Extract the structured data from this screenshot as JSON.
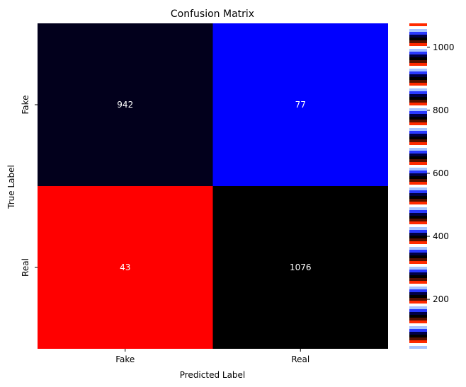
{
  "chart_data": {
    "type": "heatmap",
    "title": "Confusion Matrix",
    "xlabel": "Predicted Label",
    "ylabel": "True Label",
    "x_categories": [
      "Fake",
      "Real"
    ],
    "y_categories": [
      "Fake",
      "Real"
    ],
    "values": [
      [
        942,
        77
      ],
      [
        43,
        1076
      ]
    ],
    "cell_colors": [
      [
        "#02001c",
        "#0000ff"
      ],
      [
        "#ff0000",
        "#000000"
      ]
    ],
    "annotation_color": "#ffffff",
    "colorbar": {
      "range": [
        43,
        1076
      ],
      "ticks": [
        200,
        400,
        600,
        800,
        1000
      ],
      "tick_labels": [
        "200",
        "400",
        "600",
        "800",
        "1000"
      ],
      "palette": [
        "#ff2a00",
        "#ffffff",
        "#a8c4ff",
        "#2a3aff",
        "#000044",
        "#000000",
        "#551100"
      ]
    }
  }
}
